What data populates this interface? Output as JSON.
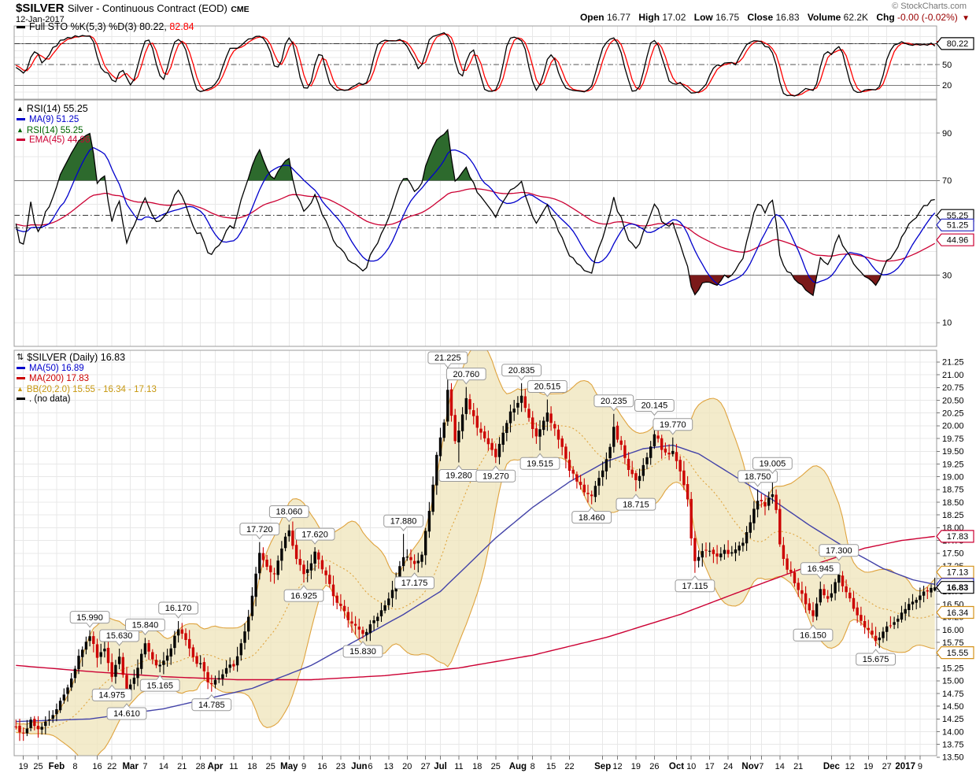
{
  "header": {
    "symbol": "$SILVER",
    "title": "Silver - Continuous Contract (EOD)",
    "exchange": "CME",
    "date": "12-Jan-2017",
    "copyright": "© StockCharts.com",
    "quote": {
      "items": [
        {
          "label": "Open",
          "value": "16.77"
        },
        {
          "label": "High",
          "value": "17.02"
        },
        {
          "label": "Low",
          "value": "16.75"
        },
        {
          "label": "Close",
          "value": "16.83"
        },
        {
          "label": "Volume",
          "value": "62.2K"
        },
        {
          "label": "Chg",
          "value": "-0.00 (-0.02%)"
        }
      ],
      "direction": "down"
    }
  },
  "colors": {
    "up": "#000000",
    "down": "#CC0000",
    "ma50_line": "#4343A8",
    "ma200_line": "#CC0033",
    "bb_fill": "#F0E5BC",
    "bb_line": "#DFA33E",
    "bb_text": "#C79810",
    "grid": "#E8E8E8",
    "grid_strong": "#7A7A7A",
    "dashdot": "#555555",
    "panel_border": "#9B9B9B",
    "axis_text": "#000000",
    "sto_k": "#000000",
    "sto_d": "#FF0000",
    "rsi_line": "#000000",
    "rsi_ma": "#0000CC",
    "rsi_ema": "#CC0033",
    "rsi_fill_hi": "#2D6A2D",
    "rsi_fill_lo": "#7B1A1A",
    "badge_tan": "#D4921B",
    "badge_blue": "#2222BB",
    "badge_red": "#CC0033",
    "chg_red": "#990000"
  },
  "chart_data": [
    {
      "id": "stoch",
      "type": "line",
      "legend_items": [
        {
          "icon": "line",
          "color": "#000000",
          "text": "Full STO %K(5,3) %D(3)",
          "big": true,
          "values": [
            {
              "text": "80.22,",
              "color": "#000000"
            },
            {
              "text": "82.84",
              "color": "#FF0000"
            }
          ]
        }
      ],
      "series": [
        {
          "name": "%K(5,3)",
          "color": "#000000"
        },
        {
          "name": "%D(3)",
          "color": "#FF0000"
        }
      ],
      "last_values": {
        "k": 80.22,
        "d": 82.84
      },
      "ylim": [
        0,
        100
      ],
      "levels": {
        "solid": [
          20,
          80
        ],
        "dashdot": [
          50
        ],
        "light": [
          10,
          30,
          40,
          60,
          70,
          90
        ]
      },
      "yticks": [
        80,
        50,
        20
      ]
    },
    {
      "id": "rsi",
      "type": "line",
      "legend_items": [
        {
          "icon": "area",
          "color": "#000000",
          "text": "RSI(14) 55.25",
          "big": true
        },
        {
          "icon": "line",
          "color": "#0000CC",
          "text": "MA(9) 51.25"
        },
        {
          "icon": "area",
          "color": "#006600",
          "text": "RSI(14) 55.25"
        },
        {
          "icon": "line",
          "color": "#CC0033",
          "text": "EMA(45) 44.96"
        }
      ],
      "series": [
        {
          "name": "RSI(14)",
          "color": "#000000"
        },
        {
          "name": "MA(9)",
          "color": "#0000CC"
        },
        {
          "name": "EMA(45)",
          "color": "#CC0033"
        }
      ],
      "last_values": {
        "rsi": 55.25,
        "ma9": 51.25,
        "ema45": 44.96
      },
      "overbought": 70,
      "oversold": 30,
      "ylim": [
        0,
        100
      ],
      "levels": {
        "solid": [
          30,
          70
        ],
        "dashdot": [
          50
        ],
        "light": [
          10,
          20,
          40,
          60,
          80,
          90
        ]
      },
      "yticks": [
        90,
        70,
        50,
        30,
        10
      ]
    },
    {
      "id": "price",
      "type": "candlestick",
      "n": 250,
      "ylim": [
        13.53,
        21.48
      ],
      "yticks_range": {
        "min": 13.5,
        "max": 21.25,
        "step": 0.25
      },
      "legend_items": [
        {
          "icon": "candle",
          "color": "#000000",
          "text": "$SILVER (Daily) 16.83",
          "big": true
        },
        {
          "icon": "line",
          "color": "#0000CC",
          "text": "MA(50) 16.89"
        },
        {
          "icon": "line",
          "color": "#CC0000",
          "text": "MA(200) 17.83"
        },
        {
          "icon": "area",
          "color": "#C79810",
          "text": "BB(20,2.0) 15.55 - 16.34 - 17.13"
        },
        {
          "icon": "line",
          "color": "#000000",
          "text": ". (no data)"
        }
      ],
      "last_ohlc": {
        "open": 16.77,
        "high": 17.02,
        "low": 16.75,
        "close": 16.83
      },
      "last_values": {
        "close": 16.83,
        "ma50": 16.89,
        "ma200": 17.83,
        "bb_upper": 17.13,
        "bb_mid": 16.34,
        "bb_lower": 15.55
      },
      "bollinger": {
        "period": 20,
        "stdev": 2.0
      },
      "close_pivots": [
        [
          0,
          14.1
        ],
        [
          2,
          13.95
        ],
        [
          4,
          14.2
        ],
        [
          6,
          14.05
        ],
        [
          8,
          14.15
        ],
        [
          10,
          14.3
        ],
        [
          12,
          14.65
        ],
        [
          14,
          14.9
        ],
        [
          16,
          15.25
        ],
        [
          18,
          15.65
        ],
        [
          20,
          15.9
        ],
        [
          22,
          15.45
        ],
        [
          24,
          15.6
        ],
        [
          26,
          15.1
        ],
        [
          28,
          15.5
        ],
        [
          30,
          14.75
        ],
        [
          32,
          15.05
        ],
        [
          34,
          15.55
        ],
        [
          35,
          15.7
        ],
        [
          37,
          15.4
        ],
        [
          39,
          15.3
        ],
        [
          41,
          15.45
        ],
        [
          43,
          15.9
        ],
        [
          44,
          16.0
        ],
        [
          46,
          15.75
        ],
        [
          48,
          15.45
        ],
        [
          50,
          15.3
        ],
        [
          52,
          15.0
        ],
        [
          53,
          14.95
        ],
        [
          55,
          15.1
        ],
        [
          57,
          15.25
        ],
        [
          59,
          15.3
        ],
        [
          61,
          15.7
        ],
        [
          63,
          16.3
        ],
        [
          65,
          17.1
        ],
        [
          66,
          17.5
        ],
        [
          68,
          17.2
        ],
        [
          70,
          17.1
        ],
        [
          72,
          17.6
        ],
        [
          74,
          17.95
        ],
        [
          76,
          17.4
        ],
        [
          78,
          17.05
        ],
        [
          81,
          17.5
        ],
        [
          84,
          17.1
        ],
        [
          86,
          16.7
        ],
        [
          88,
          16.45
        ],
        [
          90,
          16.2
        ],
        [
          92,
          16.05
        ],
        [
          94,
          15.9
        ],
        [
          96,
          16.1
        ],
        [
          99,
          16.4
        ],
        [
          102,
          16.75
        ],
        [
          105,
          17.45
        ],
        [
          108,
          17.25
        ],
        [
          110,
          17.5
        ],
        [
          112,
          18.3
        ],
        [
          114,
          19.4
        ],
        [
          116,
          20.1
        ],
        [
          117,
          20.7
        ],
        [
          119,
          19.7
        ],
        [
          121,
          20.2
        ],
        [
          122,
          20.55
        ],
        [
          124,
          20.15
        ],
        [
          126,
          19.85
        ],
        [
          128,
          19.6
        ],
        [
          130,
          19.4
        ],
        [
          132,
          19.9
        ],
        [
          134,
          20.3
        ],
        [
          136,
          20.45
        ],
        [
          137,
          20.55
        ],
        [
          139,
          20.15
        ],
        [
          141,
          19.75
        ],
        [
          143,
          20.1
        ],
        [
          144,
          20.3
        ],
        [
          146,
          19.9
        ],
        [
          148,
          19.55
        ],
        [
          150,
          19.15
        ],
        [
          152,
          18.9
        ],
        [
          154,
          18.7
        ],
        [
          156,
          18.6
        ],
        [
          158,
          18.95
        ],
        [
          160,
          19.3
        ],
        [
          162,
          19.95
        ],
        [
          164,
          19.6
        ],
        [
          166,
          19.15
        ],
        [
          168,
          18.9
        ],
        [
          170,
          19.2
        ],
        [
          172,
          19.6
        ],
        [
          173,
          19.85
        ],
        [
          175,
          19.55
        ],
        [
          177,
          19.4
        ],
        [
          178,
          19.55
        ],
        [
          180,
          19.15
        ],
        [
          182,
          18.6
        ],
        [
          183,
          17.8
        ],
        [
          184,
          17.35
        ],
        [
          186,
          17.5
        ],
        [
          188,
          17.55
        ],
        [
          190,
          17.45
        ],
        [
          192,
          17.55
        ],
        [
          194,
          17.5
        ],
        [
          196,
          17.6
        ],
        [
          198,
          17.9
        ],
        [
          200,
          18.4
        ],
        [
          201,
          18.55
        ],
        [
          203,
          18.4
        ],
        [
          205,
          18.7
        ],
        [
          206,
          18.35
        ],
        [
          207,
          17.65
        ],
        [
          208,
          17.35
        ],
        [
          210,
          17.1
        ],
        [
          212,
          16.8
        ],
        [
          214,
          16.55
        ],
        [
          216,
          16.25
        ],
        [
          218,
          16.8
        ],
        [
          220,
          16.6
        ],
        [
          222,
          16.9
        ],
        [
          223,
          17.05
        ],
        [
          225,
          16.75
        ],
        [
          227,
          16.4
        ],
        [
          229,
          16.15
        ],
        [
          231,
          15.95
        ],
        [
          233,
          15.8
        ],
        [
          235,
          15.95
        ],
        [
          237,
          16.1
        ],
        [
          239,
          16.25
        ],
        [
          241,
          16.4
        ],
        [
          243,
          16.55
        ],
        [
          245,
          16.7
        ],
        [
          247,
          16.75
        ],
        [
          249,
          16.83
        ]
      ],
      "ma50_pivots": [
        [
          0,
          14.2
        ],
        [
          20,
          14.25
        ],
        [
          40,
          14.45
        ],
        [
          64,
          14.85
        ],
        [
          80,
          15.3
        ],
        [
          95,
          15.9
        ],
        [
          105,
          16.3
        ],
        [
          115,
          16.75
        ],
        [
          130,
          17.8
        ],
        [
          140,
          18.4
        ],
        [
          150,
          18.9
        ],
        [
          160,
          19.3
        ],
        [
          170,
          19.55
        ],
        [
          178,
          19.62
        ],
        [
          185,
          19.45
        ],
        [
          195,
          19.0
        ],
        [
          205,
          18.55
        ],
        [
          215,
          18.05
        ],
        [
          225,
          17.6
        ],
        [
          235,
          17.2
        ],
        [
          243,
          16.98
        ],
        [
          249,
          16.89
        ]
      ],
      "ma200_pivots": [
        [
          0,
          15.3
        ],
        [
          20,
          15.18
        ],
        [
          40,
          15.08
        ],
        [
          60,
          15.02
        ],
        [
          80,
          15.02
        ],
        [
          100,
          15.1
        ],
        [
          120,
          15.25
        ],
        [
          140,
          15.5
        ],
        [
          160,
          15.85
        ],
        [
          180,
          16.3
        ],
        [
          200,
          16.85
        ],
        [
          215,
          17.25
        ],
        [
          230,
          17.6
        ],
        [
          240,
          17.75
        ],
        [
          249,
          17.83
        ]
      ],
      "annotations_above": [
        [
          20,
          "15.990"
        ],
        [
          28,
          "15.630"
        ],
        [
          35,
          "15.840"
        ],
        [
          44,
          "16.170"
        ],
        [
          66,
          "17.720"
        ],
        [
          74,
          "18.060"
        ],
        [
          81,
          "17.620"
        ],
        [
          105,
          "17.880"
        ],
        [
          117,
          "21.225"
        ],
        [
          122,
          "20.760"
        ],
        [
          137,
          "20.835"
        ],
        [
          144,
          "20.515"
        ],
        [
          162,
          "20.235"
        ],
        [
          173,
          "20.145"
        ],
        [
          178,
          "19.770"
        ],
        [
          201,
          "18.750"
        ],
        [
          205,
          "19.005"
        ],
        [
          218,
          "16.945"
        ],
        [
          223,
          "17.300"
        ]
      ],
      "annotations_below": [
        [
          26,
          "14.975"
        ],
        [
          30,
          "14.610"
        ],
        [
          39,
          "15.165"
        ],
        [
          53,
          "14.785"
        ],
        [
          78,
          "16.925"
        ],
        [
          94,
          "15.830"
        ],
        [
          108,
          "17.175"
        ],
        [
          120,
          "19.280"
        ],
        [
          130,
          "19.270"
        ],
        [
          142,
          "19.515"
        ],
        [
          156,
          "18.460"
        ],
        [
          168,
          "18.715"
        ],
        [
          184,
          "17.115"
        ],
        [
          216,
          "16.150"
        ],
        [
          233,
          "15.675"
        ]
      ],
      "xticks": [
        [
          2,
          "19",
          0
        ],
        [
          6,
          "25",
          0
        ],
        [
          11,
          "Feb",
          1
        ],
        [
          16,
          "8",
          0
        ],
        [
          22,
          "16",
          0
        ],
        [
          26,
          "22",
          0
        ],
        [
          31,
          "Mar",
          1
        ],
        [
          35,
          "7",
          0
        ],
        [
          40,
          "14",
          0
        ],
        [
          45,
          "21",
          0
        ],
        [
          50,
          "28",
          0
        ],
        [
          54,
          "Apr",
          1
        ],
        [
          59,
          "11",
          0
        ],
        [
          64,
          "18",
          0
        ],
        [
          69,
          "25",
          0
        ],
        [
          74,
          "May",
          1
        ],
        [
          78,
          "9",
          0
        ],
        [
          83,
          "16",
          0
        ],
        [
          88,
          "23",
          0
        ],
        [
          93,
          "Jun",
          1
        ],
        [
          96,
          "6",
          0
        ],
        [
          101,
          "13",
          0
        ],
        [
          106,
          "20",
          0
        ],
        [
          111,
          "27",
          0
        ],
        [
          115,
          "Jul",
          1
        ],
        [
          120,
          "11",
          0
        ],
        [
          125,
          "18",
          0
        ],
        [
          130,
          "25",
          0
        ],
        [
          136,
          "Aug",
          1
        ],
        [
          140,
          "8",
          0
        ],
        [
          145,
          "15",
          0
        ],
        [
          150,
          "22",
          0
        ],
        [
          159,
          "Sep",
          1
        ],
        [
          163,
          "12",
          0
        ],
        [
          168,
          "19",
          0
        ],
        [
          173,
          "26",
          0
        ],
        [
          179,
          "Oct",
          1
        ],
        [
          183,
          "10",
          0
        ],
        [
          188,
          "17",
          0
        ],
        [
          193,
          "24",
          0
        ],
        [
          199,
          "Nov",
          1
        ],
        [
          202,
          "7",
          0
        ],
        [
          207,
          "14",
          0
        ],
        [
          212,
          "21",
          0
        ],
        [
          221,
          "Dec",
          1
        ],
        [
          226,
          "12",
          0
        ],
        [
          231,
          "19",
          0
        ],
        [
          236,
          "27",
          0
        ],
        [
          241,
          "2017",
          1
        ],
        [
          245,
          "9",
          0
        ]
      ]
    }
  ]
}
